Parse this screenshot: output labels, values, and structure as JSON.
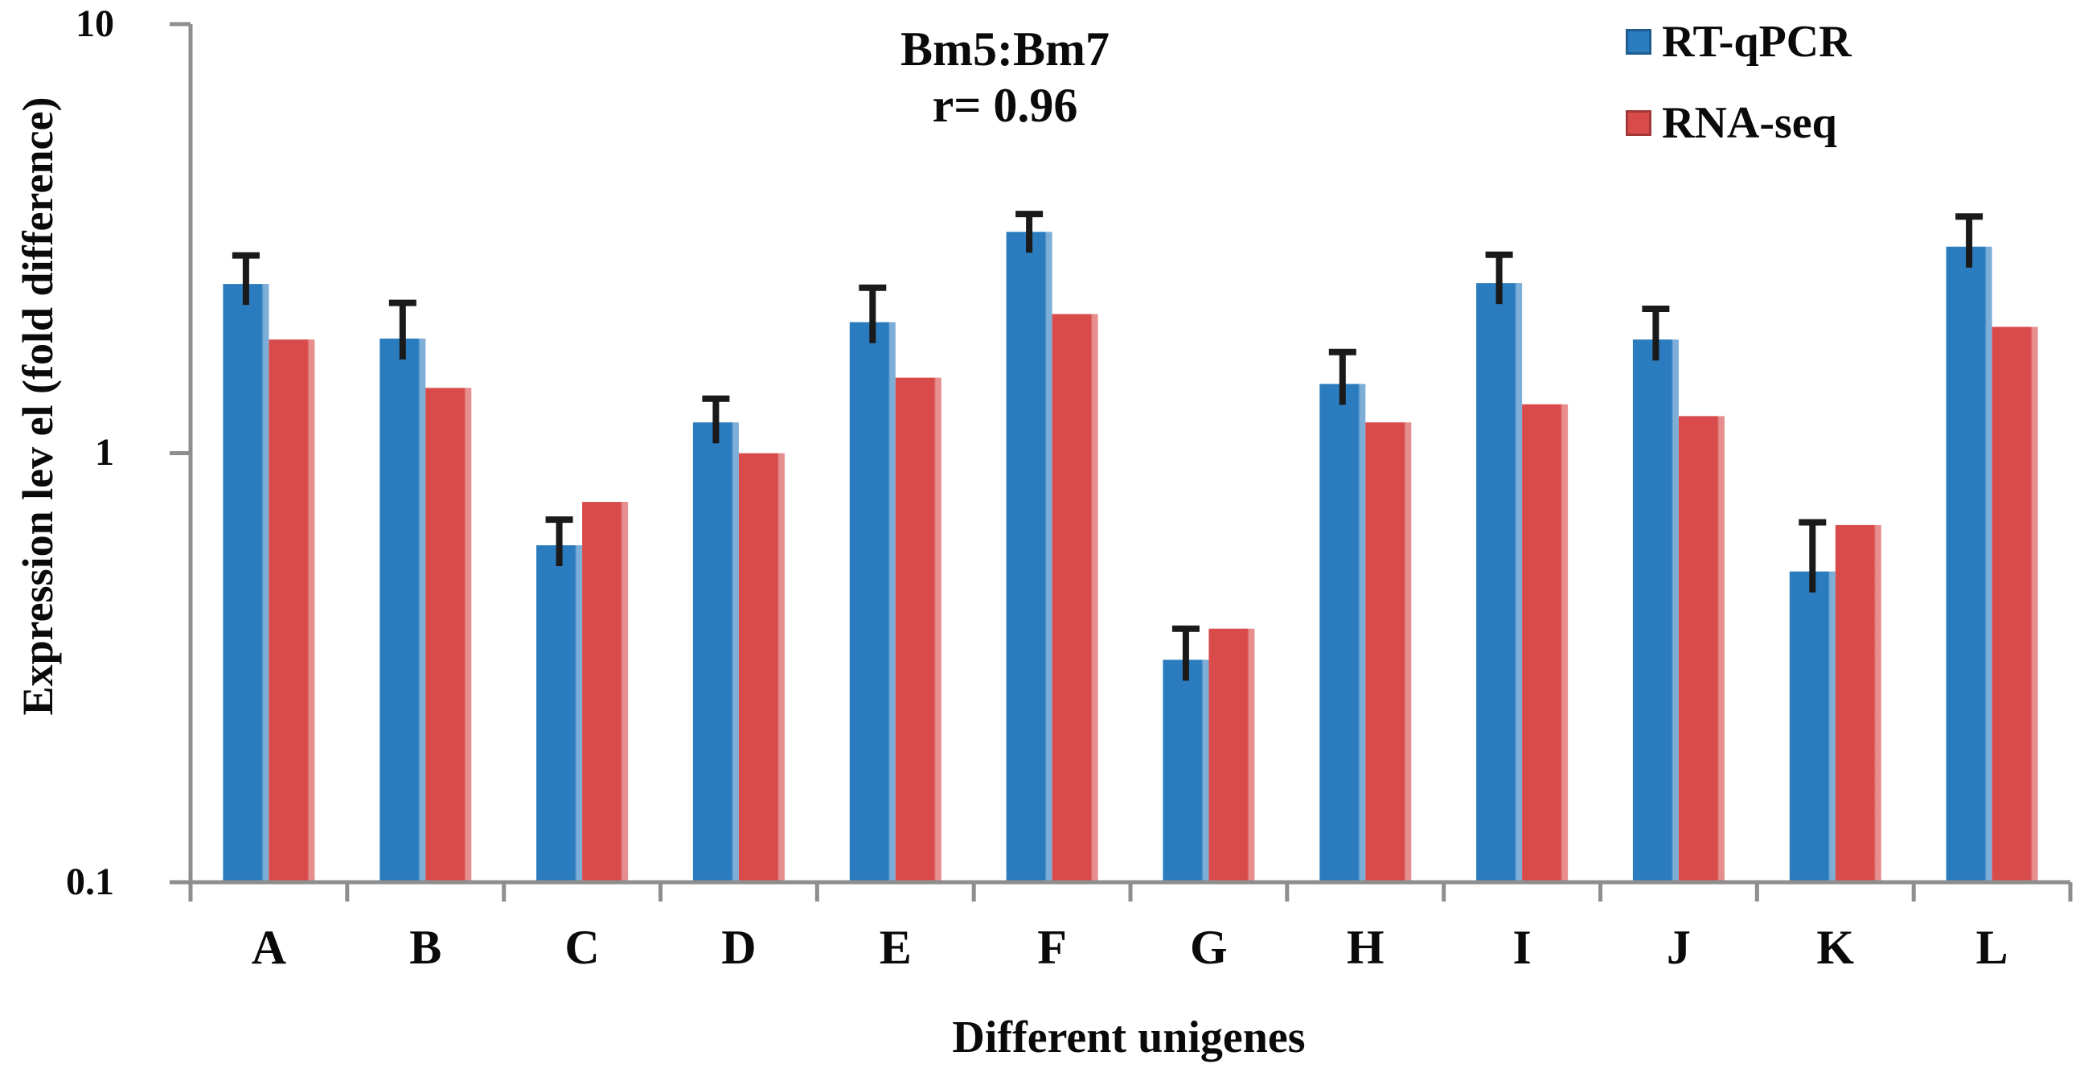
{
  "chart_data": {
    "type": "bar",
    "title": "Bm5:Bm7 r= 0.96",
    "annotations": [
      "Bm5:Bm7",
      "r= 0.96"
    ],
    "xlabel": "Different unigenes",
    "ylabel": "Expression lev el (fold difference)",
    "yscale": "log",
    "ylim": [
      0.1,
      10
    ],
    "ytick_labels": [
      "10",
      "1",
      "0.1"
    ],
    "grid": false,
    "legend_position": "top-right",
    "error_bars": "upper whiskers on RT-qPCR series only",
    "categories": [
      "A",
      "B",
      "C",
      "D",
      "E",
      "F",
      "G",
      "H",
      "I",
      "J",
      "K",
      "L"
    ],
    "series": [
      {
        "name": "RT-qPCR",
        "color": "#2B7CBE",
        "values": [
          2.48,
          1.85,
          0.61,
          1.18,
          2.02,
          3.28,
          0.33,
          1.45,
          2.49,
          1.84,
          0.53,
          3.03
        ],
        "error_high": [
          2.89,
          2.24,
          0.7,
          1.34,
          2.43,
          3.61,
          0.39,
          1.72,
          2.9,
          2.17,
          0.69,
          3.56
        ]
      },
      {
        "name": "RNA-seq",
        "color": "#D94B4B",
        "values": [
          1.84,
          1.42,
          0.77,
          1.0,
          1.5,
          2.11,
          0.39,
          1.18,
          1.3,
          1.22,
          0.68,
          1.97
        ]
      }
    ],
    "colors": {
      "axis": "#8e8e8e",
      "error_bar": "#1a1a1a",
      "text": "#0a0a0a"
    }
  }
}
